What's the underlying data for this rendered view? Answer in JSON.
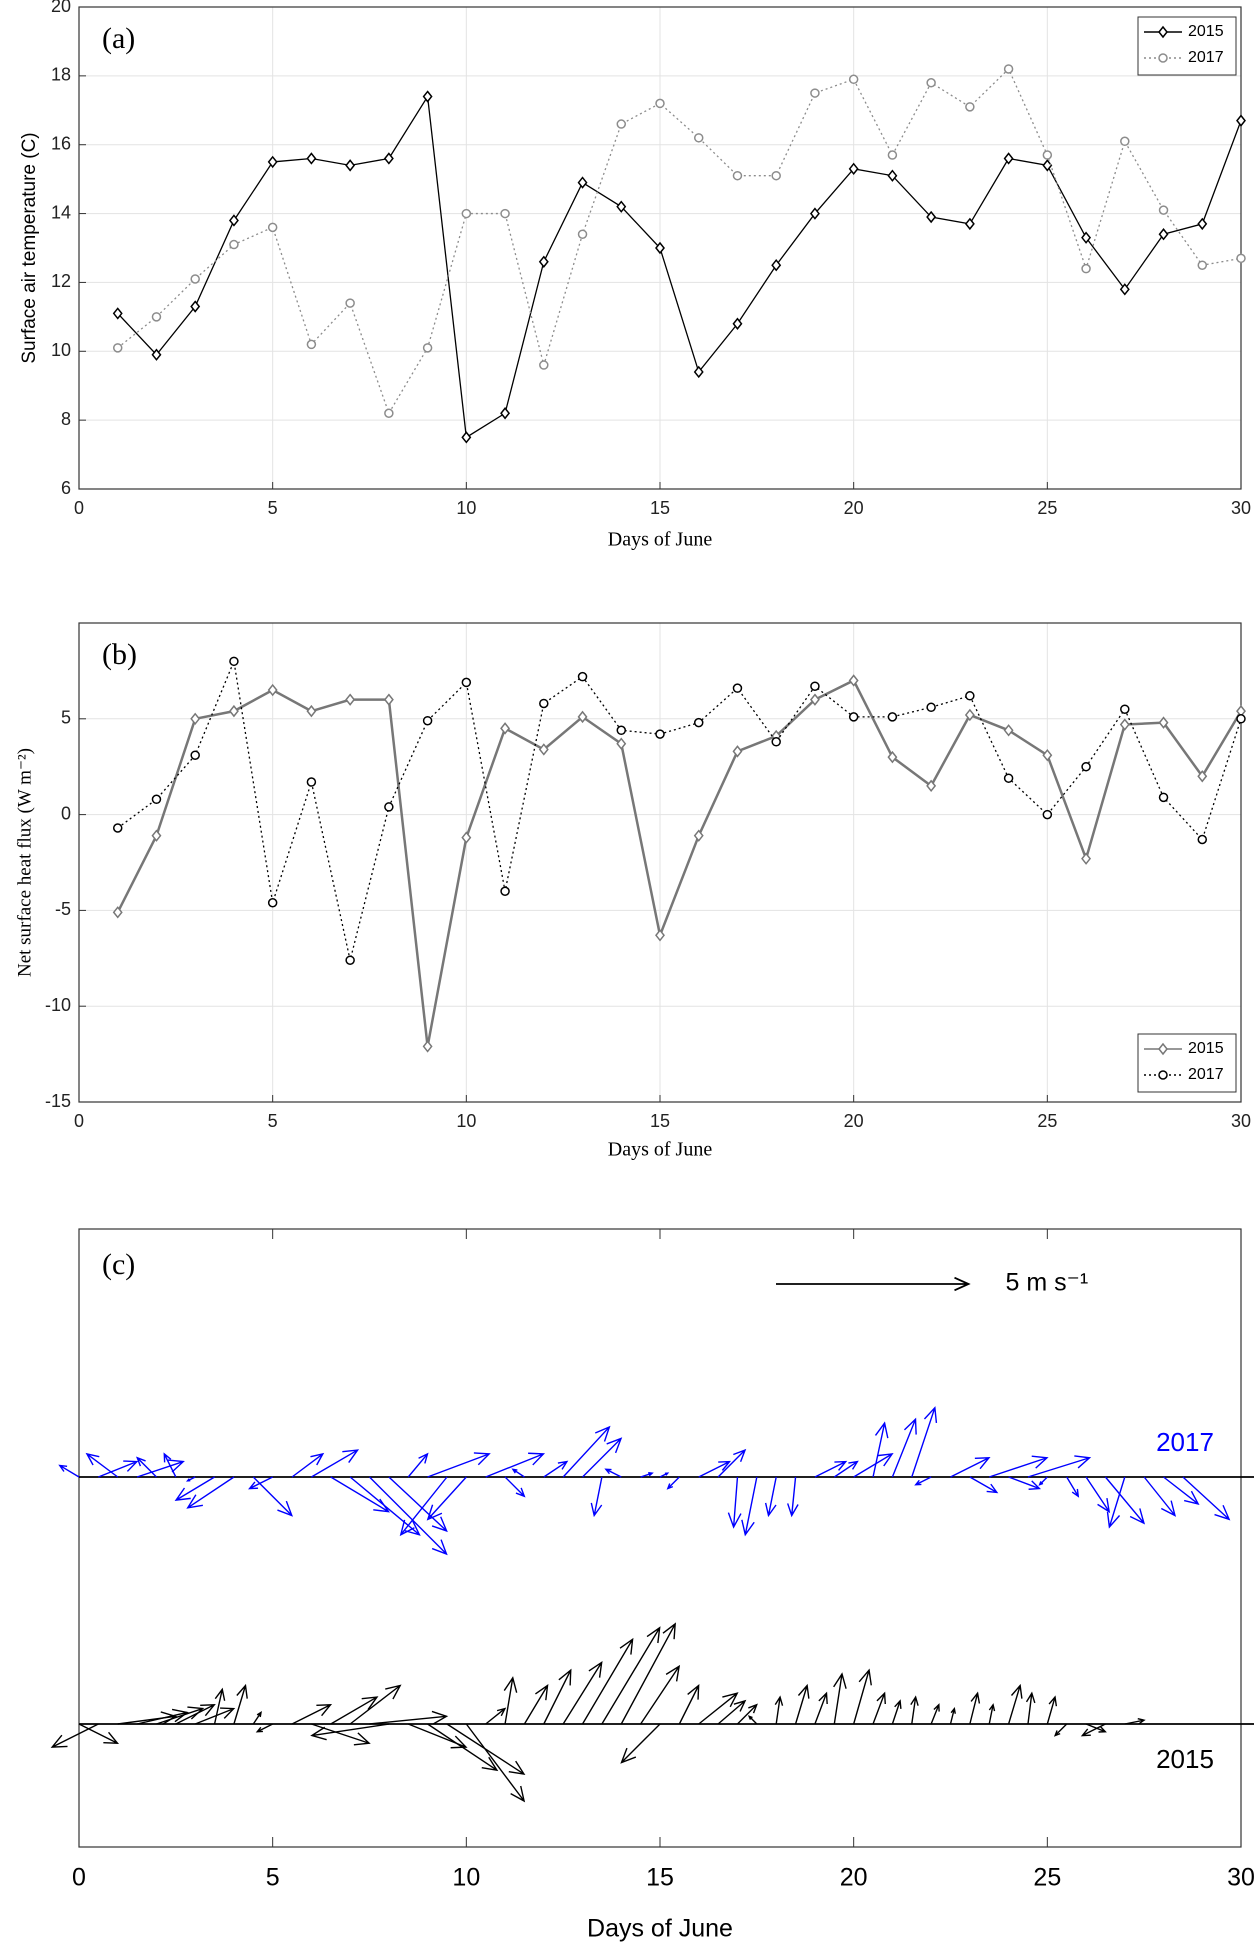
{
  "chart_data": [
    {
      "type": "line",
      "panel_label": "(a)",
      "xlabel": "Days of June",
      "ylabel": "Surface air temperature (C)",
      "x": [
        1,
        2,
        3,
        4,
        5,
        6,
        7,
        8,
        9,
        10,
        11,
        12,
        13,
        14,
        15,
        16,
        17,
        18,
        19,
        20,
        21,
        22,
        23,
        24,
        25,
        26,
        27,
        28,
        29,
        30
      ],
      "xlim": [
        0,
        30
      ],
      "xticks": [
        0,
        5,
        10,
        15,
        20,
        25,
        30
      ],
      "ylim": [
        6,
        20
      ],
      "yticks": [
        6,
        8,
        10,
        12,
        14,
        16,
        18,
        20
      ],
      "grid": true,
      "legend": "upper right",
      "series": [
        {
          "name": "2015",
          "color": "#000000",
          "marker": "diamond",
          "linestyle": "solid",
          "values": [
            11.1,
            9.9,
            11.3,
            13.8,
            15.5,
            15.6,
            15.4,
            15.6,
            17.4,
            7.5,
            8.2,
            12.6,
            14.9,
            14.2,
            13.0,
            9.4,
            10.8,
            12.5,
            14.0,
            15.3,
            15.1,
            13.9,
            13.7,
            15.6,
            15.4,
            13.3,
            11.8,
            13.4,
            13.7,
            16.7
          ]
        },
        {
          "name": "2017",
          "color": "#8c8c8c",
          "marker": "circle",
          "linestyle": "dotted",
          "values": [
            10.1,
            11.0,
            12.1,
            13.1,
            13.6,
            10.2,
            11.4,
            8.2,
            10.1,
            14.0,
            14.0,
            9.6,
            13.4,
            16.6,
            17.2,
            16.2,
            15.1,
            15.1,
            17.5,
            17.9,
            15.7,
            17.8,
            17.1,
            18.2,
            15.7,
            12.4,
            16.1,
            14.1,
            12.5,
            12.7
          ]
        }
      ]
    },
    {
      "type": "line",
      "panel_label": "(b)",
      "xlabel": "Days of June",
      "ylabel": "Net surface heat flux (W m⁻²)",
      "x": [
        1,
        2,
        3,
        4,
        5,
        6,
        7,
        8,
        9,
        10,
        11,
        12,
        13,
        14,
        15,
        16,
        17,
        18,
        19,
        20,
        21,
        22,
        23,
        24,
        25,
        26,
        27,
        28,
        29,
        30
      ],
      "xlim": [
        0,
        30
      ],
      "xticks": [
        0,
        5,
        10,
        15,
        20,
        25,
        30
      ],
      "ylim": [
        -15,
        10
      ],
      "yticks": [
        -15,
        -10,
        -5,
        0,
        5
      ],
      "grid": true,
      "legend": "lower right",
      "series": [
        {
          "name": "2015",
          "color": "#777777",
          "marker": "diamond",
          "linestyle": "solid",
          "values": [
            -5.1,
            -1.1,
            5.0,
            5.4,
            6.5,
            5.4,
            6.0,
            6.0,
            -12.1,
            -1.2,
            4.5,
            3.4,
            5.1,
            3.7,
            -6.3,
            -1.1,
            3.3,
            4.1,
            6.0,
            7.0,
            3.0,
            1.5,
            5.2,
            4.4,
            3.1,
            -2.3,
            4.7,
            4.8,
            2.0,
            5.4
          ]
        },
        {
          "name": "2017",
          "color": "#000000",
          "marker": "circle",
          "linestyle": "dotted",
          "values": [
            -0.7,
            0.8,
            3.1,
            8.0,
            -4.6,
            1.7,
            -7.6,
            0.4,
            4.9,
            6.9,
            -4.0,
            5.8,
            7.2,
            4.4,
            4.2,
            4.8,
            6.6,
            3.8,
            6.7,
            5.1,
            5.1,
            5.6,
            6.2,
            1.9,
            0.0,
            2.5,
            5.5,
            0.9,
            -1.3,
            5.0
          ]
        }
      ]
    },
    {
      "type": "quiver",
      "panel_label": "(c)",
      "xlabel": "Days of June",
      "xlim": [
        0,
        30
      ],
      "xticks": [
        0,
        5,
        10,
        15,
        20,
        25,
        30
      ],
      "reference": {
        "value": 5,
        "label": "5 m s⁻¹"
      },
      "series": [
        {
          "name": "2017",
          "color": "#0000ff",
          "x": [
            0,
            0.5,
            1,
            1.5,
            2,
            2.5,
            3,
            3.5,
            4,
            4.5,
            5,
            5.5,
            6,
            6.5,
            7,
            7.5,
            8,
            8.5,
            9,
            9.5,
            10,
            10.5,
            11,
            11.5,
            12,
            12.5,
            13,
            13.5,
            14,
            14.5,
            15,
            15.5,
            16,
            16.5,
            17,
            17.5,
            18,
            18.5,
            19,
            19.5,
            20,
            20.5,
            21,
            21.5,
            22,
            22.5,
            23,
            23.5,
            24,
            24.5,
            25,
            25.5,
            26,
            26.5,
            27,
            27.5,
            28,
            28.5
          ],
          "u": [
            -0.5,
            1.0,
            -0.8,
            1.2,
            -0.5,
            -0.3,
            -0.2,
            -1.0,
            -1.2,
            1.0,
            -0.6,
            0.8,
            1.2,
            1.5,
            1.8,
            2.0,
            1.5,
            0.5,
            1.6,
            -1.2,
            -1.0,
            1.5,
            0.5,
            -0.3,
            0.6,
            1.2,
            1.0,
            -0.2,
            -0.4,
            0.3,
            0.2,
            -0.3,
            0.8,
            0.7,
            -0.1,
            -0.3,
            -0.2,
            -0.1,
            0.8,
            0.6,
            1.0,
            0.3,
            0.6,
            0.6,
            -0.4,
            1.0,
            0.7,
            1.5,
            0.8,
            1.6,
            -0.2,
            0.3,
            0.6,
            1.0,
            -0.4,
            0.8,
            0.9,
            1.2
          ],
          "v": [
            0.3,
            0.4,
            0.6,
            0.4,
            0.5,
            0.6,
            -0.1,
            -0.6,
            -0.8,
            -1.0,
            -0.3,
            0.6,
            0.7,
            -0.9,
            -1.5,
            -2.0,
            -1.4,
            0.6,
            0.6,
            -1.5,
            -1.1,
            0.6,
            -0.5,
            0.2,
            0.4,
            1.3,
            1.0,
            -1.0,
            0.2,
            0.1,
            0.1,
            -0.3,
            0.4,
            0.7,
            -1.3,
            -1.5,
            -1.0,
            -1.0,
            0.4,
            0.4,
            0.6,
            1.4,
            1.5,
            1.8,
            -0.2,
            0.5,
            -0.4,
            0.5,
            -0.3,
            0.5,
            -0.2,
            -0.5,
            -0.9,
            -1.2,
            -1.3,
            -1.0,
            -0.7,
            -1.1
          ]
        },
        {
          "name": "2015",
          "color": "#000000",
          "x": [
            0,
            0.5,
            1,
            1.5,
            2,
            2.5,
            3,
            3.5,
            4,
            4.5,
            5,
            5.5,
            6,
            6.5,
            7,
            7.5,
            8,
            8.5,
            9,
            9.5,
            10,
            10.5,
            11,
            11.5,
            12,
            12.5,
            13,
            13.5,
            14,
            14.5,
            15,
            15.5,
            16,
            16.5,
            17,
            17.5,
            18,
            18.5,
            19,
            19.5,
            20,
            20.5,
            21,
            21.5,
            22,
            22.5,
            23,
            23.5,
            24,
            24.5,
            25,
            25.5,
            26,
            26.5,
            27
          ],
          "u": [
            1.0,
            -1.2,
            1.5,
            1.3,
            1.2,
            1.0,
            1.0,
            0.2,
            0.3,
            0.2,
            -0.4,
            1.0,
            1.5,
            1.2,
            1.3,
            2.0,
            -2.0,
            1.5,
            1.8,
            2.0,
            1.5,
            0.5,
            0.2,
            0.6,
            0.7,
            1.0,
            1.3,
            1.5,
            1.4,
            1.0,
            -1.0,
            0.5,
            1.0,
            0.7,
            0.5,
            -0.2,
            0.1,
            0.3,
            0.3,
            0.2,
            0.4,
            0.3,
            0.2,
            0.1,
            0.2,
            0.1,
            0.2,
            0.1,
            0.3,
            0.1,
            0.2,
            -0.3,
            0.5,
            -0.6,
            0.5
          ],
          "v": [
            -0.5,
            -0.6,
            0.2,
            0.3,
            0.4,
            0.5,
            0.4,
            0.9,
            1.0,
            0.3,
            -0.2,
            0.5,
            -0.5,
            0.7,
            1.0,
            0.2,
            -0.3,
            -0.6,
            -1.2,
            -1.3,
            -2.0,
            0.4,
            1.2,
            1.0,
            1.4,
            1.6,
            2.2,
            2.5,
            2.6,
            1.5,
            -1.0,
            1.0,
            0.8,
            0.6,
            0.5,
            0.2,
            0.7,
            1.0,
            0.8,
            1.3,
            1.4,
            0.8,
            0.6,
            0.7,
            0.5,
            0.4,
            0.8,
            0.5,
            1.0,
            0.8,
            0.7,
            -0.3,
            -0.2,
            -0.3,
            0.1
          ]
        }
      ]
    }
  ]
}
